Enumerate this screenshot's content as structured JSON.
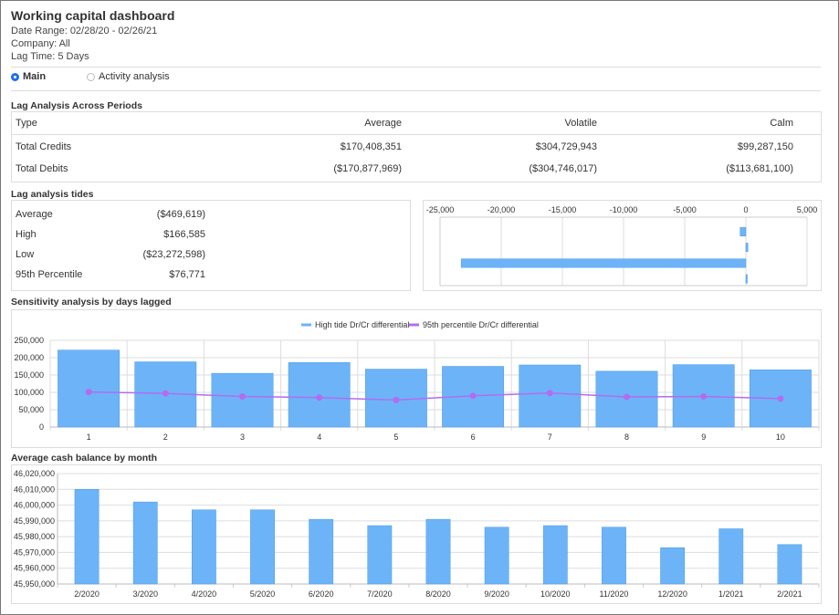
{
  "header": {
    "title": "Working capital dashboard",
    "date_range": "Date Range: 02/28/20 - 02/26/21",
    "company": "Company: All",
    "lag_time": "Lag Time: 5 Days"
  },
  "tabs": [
    {
      "label": "Main",
      "selected": true
    },
    {
      "label": "Activity analysis",
      "selected": false
    }
  ],
  "lag_periods": {
    "title": "Lag Analysis Across Periods",
    "columns": [
      "Type",
      "Average",
      "Volatile",
      "Calm"
    ],
    "rows": [
      [
        "Total Credits",
        "$170,408,351",
        "$304,729,943",
        "$99,287,150"
      ],
      [
        "Total Debits",
        "($170,877,969)",
        "($304,746,017)",
        "($113,681,100)"
      ]
    ]
  },
  "tides": {
    "title": "Lag analysis tides",
    "rows": [
      {
        "label": "Average",
        "value": "($469,619)"
      },
      {
        "label": "High",
        "value": "$166,585"
      },
      {
        "label": "Low",
        "value": "($23,272,598)"
      },
      {
        "label": "95th Percentile",
        "value": "$76,771"
      }
    ]
  },
  "sensitivity": {
    "title": "Sensitivity analysis by days lagged"
  },
  "avg_cash": {
    "title": "Average cash balance by month"
  },
  "colors": {
    "bar": "#6cb4f7",
    "bar_stroke": "#4a9ae6",
    "line": "#b36cf0",
    "accent": "#1a73e8"
  },
  "chart_data": [
    {
      "type": "bar",
      "orientation": "horizontal",
      "categories": [
        "Average",
        "High",
        "Low",
        "95th Percentile"
      ],
      "values": [
        -469.619,
        166.585,
        -23272.598,
        76.771
      ],
      "xlim": [
        -25000,
        5000
      ],
      "xticks": [
        "-25,000",
        "-20,000",
        "-15,000",
        "-10,000",
        "-5,000",
        "0",
        "5,000"
      ],
      "tick_values": [
        -25000,
        -20000,
        -15000,
        -10000,
        -5000,
        0,
        5000
      ],
      "grid": true
    },
    {
      "type": "bar",
      "categories": [
        "1",
        "2",
        "3",
        "4",
        "5",
        "6",
        "7",
        "8",
        "9",
        "10"
      ],
      "series": [
        {
          "name": "High tide Dr/Cr differential",
          "type": "bar",
          "values": [
            222000,
            188000,
            155000,
            186000,
            167000,
            175000,
            179000,
            161000,
            180000,
            165000
          ]
        },
        {
          "name": "95th percentile Dr/Cr differential",
          "type": "line",
          "values": [
            101000,
            97000,
            88000,
            85000,
            78000,
            90000,
            98000,
            87000,
            88000,
            82000
          ]
        }
      ],
      "ylim": [
        0,
        250000
      ],
      "yticks": [
        "0",
        "50,000",
        "100,000",
        "150,000",
        "200,000",
        "250,000"
      ],
      "ytick_values": [
        0,
        50000,
        100000,
        150000,
        200000,
        250000
      ],
      "legend": "top-center",
      "grid": true
    },
    {
      "type": "bar",
      "categories": [
        "2/2020",
        "3/2020",
        "4/2020",
        "5/2020",
        "6/2020",
        "7/2020",
        "8/2020",
        "9/2020",
        "10/2020",
        "11/2020",
        "12/2020",
        "1/2021",
        "2/2021"
      ],
      "values": [
        46010000,
        46002000,
        45997000,
        45997000,
        45991000,
        45987000,
        45991000,
        45986000,
        45987000,
        45986000,
        45973000,
        45985000,
        45975000
      ],
      "ylim": [
        45950000,
        46020000
      ],
      "yticks": [
        "45,950,000",
        "45,960,000",
        "45,970,000",
        "45,980,000",
        "45,990,000",
        "46,000,000",
        "46,010,000",
        "46,020,000"
      ],
      "ytick_values": [
        45950000,
        45960000,
        45970000,
        45980000,
        45990000,
        46000000,
        46010000,
        46020000
      ],
      "grid": true
    }
  ]
}
